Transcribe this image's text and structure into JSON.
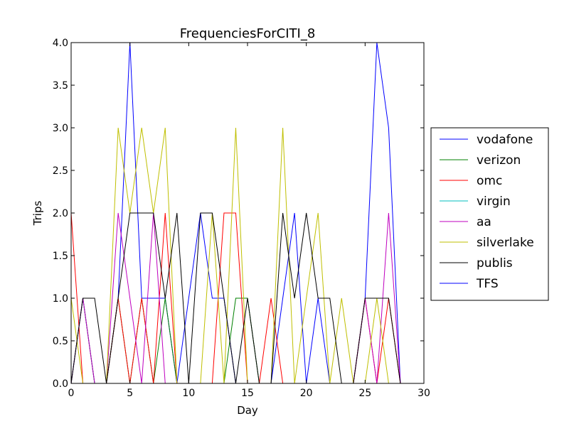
{
  "chart_data": {
    "type": "line",
    "title": "FrequenciesForCITI_8",
    "xlabel": "Day",
    "ylabel": "Trips",
    "xlim": [
      0,
      30
    ],
    "ylim": [
      0,
      4
    ],
    "xticks": [
      "0",
      "5",
      "10",
      "15",
      "20",
      "25",
      "30"
    ],
    "yticks": [
      "0.0",
      "0.5",
      "1.0",
      "1.5",
      "2.0",
      "2.5",
      "3.0",
      "3.5",
      "4.0"
    ],
    "grid": false,
    "legend_position": "right",
    "x": [
      0,
      1,
      2,
      3,
      4,
      5,
      6,
      7,
      8,
      9,
      10,
      11,
      12,
      13,
      14,
      15,
      16,
      17,
      18,
      19,
      20,
      21,
      22,
      23,
      24,
      25,
      26,
      27,
      28,
      29,
      30
    ],
    "series": [
      {
        "name": "vodafone",
        "color": "#0000ff",
        "values": [
          0,
          1,
          0,
          0,
          1,
          4,
          1,
          1,
          1,
          0,
          1,
          2,
          1,
          1,
          0,
          0,
          0,
          0,
          1,
          2,
          0,
          1,
          0,
          0,
          0,
          1,
          4,
          3,
          0,
          0,
          0
        ]
      },
      {
        "name": "verizon",
        "color": "#008000",
        "values": [
          0,
          1,
          0,
          0,
          1,
          0,
          1,
          0,
          1,
          0,
          0,
          0,
          0,
          0,
          1,
          1,
          0,
          0,
          0,
          0,
          0,
          0,
          0,
          0,
          0,
          0,
          0,
          0,
          0,
          0,
          0
        ]
      },
      {
        "name": "omc",
        "color": "#ff0000",
        "values": [
          2,
          0,
          0,
          0,
          1,
          0,
          1,
          0,
          2,
          0,
          0,
          0,
          0,
          2,
          2,
          0,
          0,
          1,
          0,
          0,
          0,
          0,
          0,
          0,
          0,
          1,
          0,
          1,
          0,
          0,
          0
        ]
      },
      {
        "name": "virgin",
        "color": "#00bfbf",
        "values": [
          0,
          0,
          0,
          0,
          0,
          0,
          0,
          0,
          0,
          0,
          0,
          0,
          0,
          0,
          0,
          0,
          0,
          0,
          0,
          0,
          0,
          0,
          0,
          0,
          0,
          0,
          0,
          0,
          0,
          0,
          0
        ]
      },
      {
        "name": "aa",
        "color": "#bf00bf",
        "values": [
          0,
          1,
          0,
          0,
          2,
          1,
          0,
          2,
          0,
          0,
          0,
          0,
          0,
          0,
          0,
          0,
          0,
          0,
          0,
          0,
          0,
          0,
          0,
          0,
          0,
          1,
          0,
          2,
          0,
          0,
          0
        ]
      },
      {
        "name": "silverlake",
        "color": "#bfbf00",
        "values": [
          1,
          0,
          0,
          0,
          3,
          2,
          3,
          2,
          3,
          0,
          0,
          0,
          2,
          0,
          3,
          0,
          0,
          0,
          3,
          0,
          1,
          2,
          0,
          1,
          0,
          0,
          1,
          0,
          0,
          0,
          0
        ]
      },
      {
        "name": "publis",
        "color": "#000000",
        "values": [
          0,
          1,
          1,
          0,
          1,
          2,
          2,
          2,
          1,
          2,
          0,
          2,
          2,
          1,
          0,
          1,
          0,
          0,
          2,
          1,
          2,
          1,
          1,
          0,
          0,
          1,
          1,
          1,
          0,
          0,
          0
        ]
      },
      {
        "name": "TFS",
        "color": "#0000ff",
        "values": [
          0,
          0,
          0,
          0,
          0,
          0,
          0,
          0,
          0,
          0,
          0,
          0,
          0,
          0,
          0,
          0,
          0,
          0,
          0,
          0,
          0,
          0,
          0,
          0,
          0,
          0,
          0,
          0,
          0,
          0,
          0
        ]
      }
    ]
  }
}
